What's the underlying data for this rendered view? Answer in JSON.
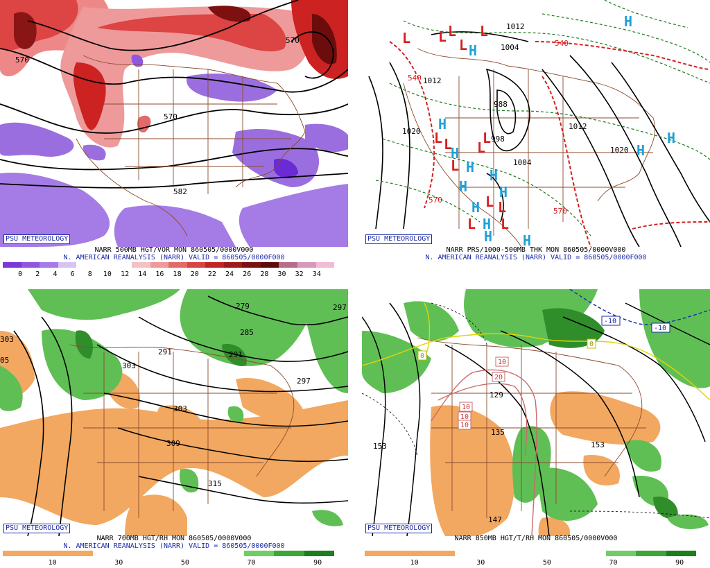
{
  "panels": [
    {
      "id": "p1",
      "badge": "PSU METEOROLOGY",
      "line1": "NARR 500MB HGT/VOR MON 860505/0000V000",
      "line2": "N. AMERICAN REANALYSIS (NARR) VALID = 860505/0000F000",
      "contours": [
        "570",
        "582",
        "570",
        "570"
      ],
      "scale_colors": [
        "#7a38d9",
        "#8f58df",
        "#a57be6",
        "#d6c5f0",
        "#ffffff",
        "#ffffff",
        "#ffffff",
        "#f4c2c2",
        "#ee9a9a",
        "#e36a6a",
        "#d84444",
        "#bf2525",
        "#a01a1a",
        "#7d1010",
        "#5f0b0b",
        "#b56d8b",
        "#d59abb",
        "#f0bcd6"
      ],
      "scale_labels": [
        "0",
        "2",
        "4",
        "6",
        "8",
        "10",
        "12",
        "14",
        "16",
        "18",
        "20",
        "22",
        "24",
        "26",
        "28",
        "30",
        "32",
        "34"
      ]
    },
    {
      "id": "p2",
      "badge": "PSU METEOROLOGY",
      "line1": "NARR PRS/1000-500MB THK MON 860505/0000V000",
      "line2": "N. AMERICAN REANALYSIS (NARR) VALID = 860505/0000F000",
      "contours": [
        "1012",
        "1004",
        "540",
        "540",
        "1012",
        "988",
        "1020",
        "998",
        "1004",
        "1012",
        "1020",
        "570",
        "570"
      ],
      "low_label": "L",
      "high_label": "H"
    },
    {
      "id": "p3",
      "badge": "PSU METEOROLOGY",
      "line1": "NARR 700MB HGT/RH MON 860505/0000V000",
      "line2": "N. AMERICAN REANALYSIS (NARR) VALID = 860505/0000F000",
      "contours": [
        "279",
        "297",
        "285",
        "291",
        "291",
        "297",
        "303",
        "303",
        "309",
        "315",
        "303",
        "05"
      ],
      "scale_colors": [
        "#f2a860",
        "#f2a860",
        "#f2a860",
        "#ffffff",
        "#ffffff",
        "#ffffff",
        "#ffffff",
        "#ffffff",
        "#72cc66",
        "#3ea636",
        "#1c7e1c"
      ],
      "scale_labels": [
        "10",
        "30",
        "50",
        "70",
        "90"
      ]
    },
    {
      "id": "p4",
      "badge": "PSU METEOROLOGY",
      "line1": "NARR 850MB HGT/T/RH MON 860505/0000V000",
      "line2": "",
      "contours": [
        "-10",
        "-10",
        "0",
        "0",
        "10",
        "20",
        "10",
        "10",
        "10",
        "129",
        "135",
        "153",
        "153",
        "147"
      ],
      "scale_colors": [
        "#f2a860",
        "#f2a860",
        "#f2a860",
        "#ffffff",
        "#ffffff",
        "#ffffff",
        "#ffffff",
        "#ffffff",
        "#72cc66",
        "#3ea636",
        "#1c7e1c"
      ],
      "scale_labels": [
        "10",
        "30",
        "50",
        "70",
        "90"
      ]
    }
  ]
}
